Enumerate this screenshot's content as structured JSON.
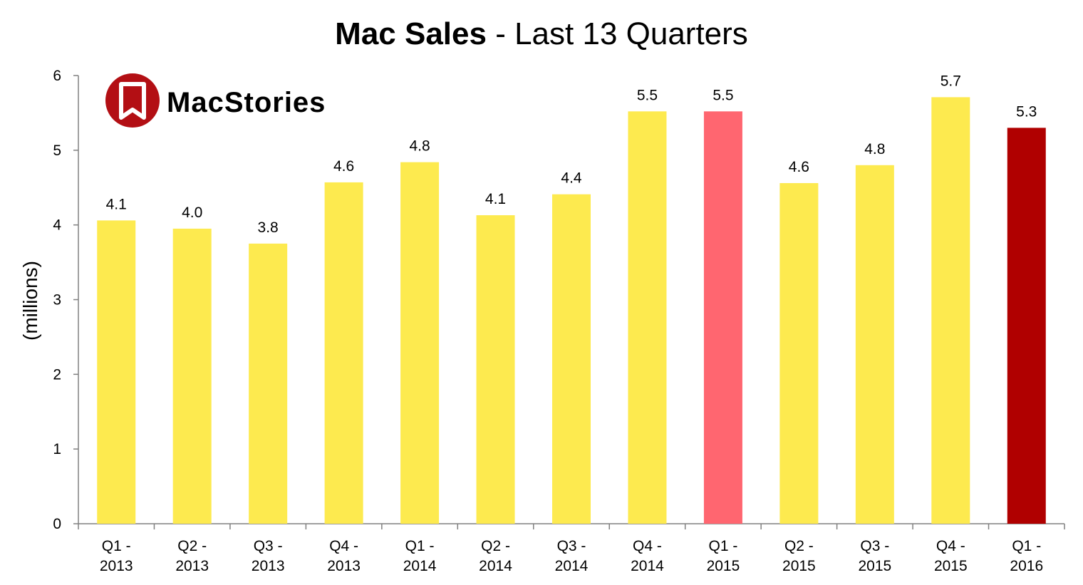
{
  "title_bold": "Mac Sales",
  "title_rest": " - Last 13 Quarters",
  "logo": {
    "text": "MacStories",
    "color": "#b30f14"
  },
  "colors": {
    "default_bar": "#fdea4f",
    "highlight_previous": "#ff6670",
    "highlight_current": "#b00000"
  },
  "chart_data": {
    "type": "bar",
    "title": "Mac Sales - Last 13 Quarters",
    "xlabel": "",
    "ylabel": "(millions)",
    "ylim": [
      0,
      6
    ],
    "yticks": [
      0,
      1,
      2,
      3,
      4,
      5,
      6
    ],
    "grid": false,
    "legend": "none",
    "categories": [
      [
        "Q1 -",
        "2013"
      ],
      [
        "Q2 -",
        "2013"
      ],
      [
        "Q3 -",
        "2013"
      ],
      [
        "Q4 -",
        "2013"
      ],
      [
        "Q1 -",
        "2014"
      ],
      [
        "Q2 -",
        "2014"
      ],
      [
        "Q3 -",
        "2014"
      ],
      [
        "Q4 -",
        "2014"
      ],
      [
        "Q1 -",
        "2015"
      ],
      [
        "Q2 -",
        "2015"
      ],
      [
        "Q3 -",
        "2015"
      ],
      [
        "Q4 -",
        "2015"
      ],
      [
        "Q1 -",
        "2016"
      ]
    ],
    "values": [
      4.06,
      3.95,
      3.75,
      4.57,
      4.84,
      4.13,
      4.41,
      5.52,
      5.52,
      4.56,
      4.8,
      5.71,
      5.3
    ],
    "data_labels": [
      "4.1",
      "4.0",
      "3.8",
      "4.6",
      "4.8",
      "4.1",
      "4.4",
      "5.5",
      "5.5",
      "4.6",
      "4.8",
      "5.7",
      "5.3"
    ],
    "bar_colors": [
      "#fdea4f",
      "#fdea4f",
      "#fdea4f",
      "#fdea4f",
      "#fdea4f",
      "#fdea4f",
      "#fdea4f",
      "#fdea4f",
      "#ff6670",
      "#fdea4f",
      "#fdea4f",
      "#fdea4f",
      "#b00000"
    ]
  }
}
